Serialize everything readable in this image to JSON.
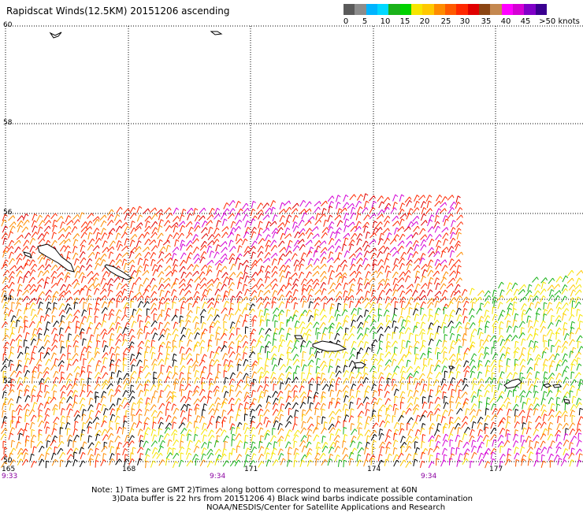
{
  "title": "Rapidscat Winds(12.5KM) 20151206 ascending",
  "legend": {
    "unit": ">50 knots",
    "labels": [
      "0",
      "5",
      "10",
      "15",
      "20",
      "25",
      "30",
      "35",
      "40",
      "45"
    ],
    "colors": [
      "#5a5a5a",
      "#8c8c8c",
      "#00b4ff",
      "#00d8ff",
      "#1ab21a",
      "#00d200",
      "#f6e600",
      "#ffc800",
      "#ff8c00",
      "#ff5a00",
      "#ff2800",
      "#e00000",
      "#8b4513",
      "#c48850",
      "#ff00ff",
      "#d400d4",
      "#8000c8",
      "#3a0090"
    ]
  },
  "lat_labels": [
    "60",
    "58",
    "56",
    "54",
    "52",
    "50"
  ],
  "lon_labels": [
    "165",
    "168",
    "171",
    "174",
    "177"
  ],
  "time_labels": [
    "9:33",
    "9:34",
    "9:34"
  ],
  "notes": [
    "Note: 1) Times are GMT 2)Times along bottom correspond to measurement at 60N",
    "3)Data buffer is 22 hrs from 20151206 4) Black wind barbs indicate possible contamination",
    "NOAA/NESDIS/Center for Satellite Applications and Research"
  ],
  "colors": {
    "grid": "#000000",
    "time_text": "#8a00a0",
    "contamination": "#000000"
  }
}
